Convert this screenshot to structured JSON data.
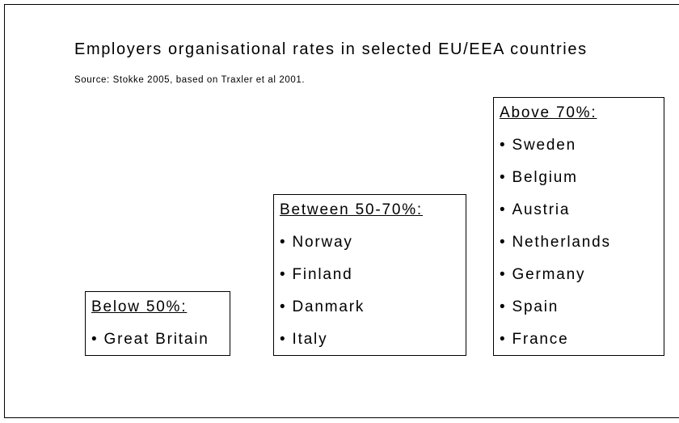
{
  "title": "Employers organisational rates in selected EU/EEA countries",
  "source": "Source: Stokke 2005, based on Traxler et al 2001.",
  "groups": [
    {
      "heading": "Below 50%:",
      "items": [
        "Great Britain"
      ]
    },
    {
      "heading": "Between 50-70%:",
      "items": [
        "Norway",
        "Finland",
        "Danmark",
        "Italy"
      ]
    },
    {
      "heading": "Above 70%:",
      "items": [
        "Sweden",
        "Belgium",
        "Austria",
        "Netherlands",
        "Germany",
        "Spain",
        "France"
      ]
    }
  ]
}
